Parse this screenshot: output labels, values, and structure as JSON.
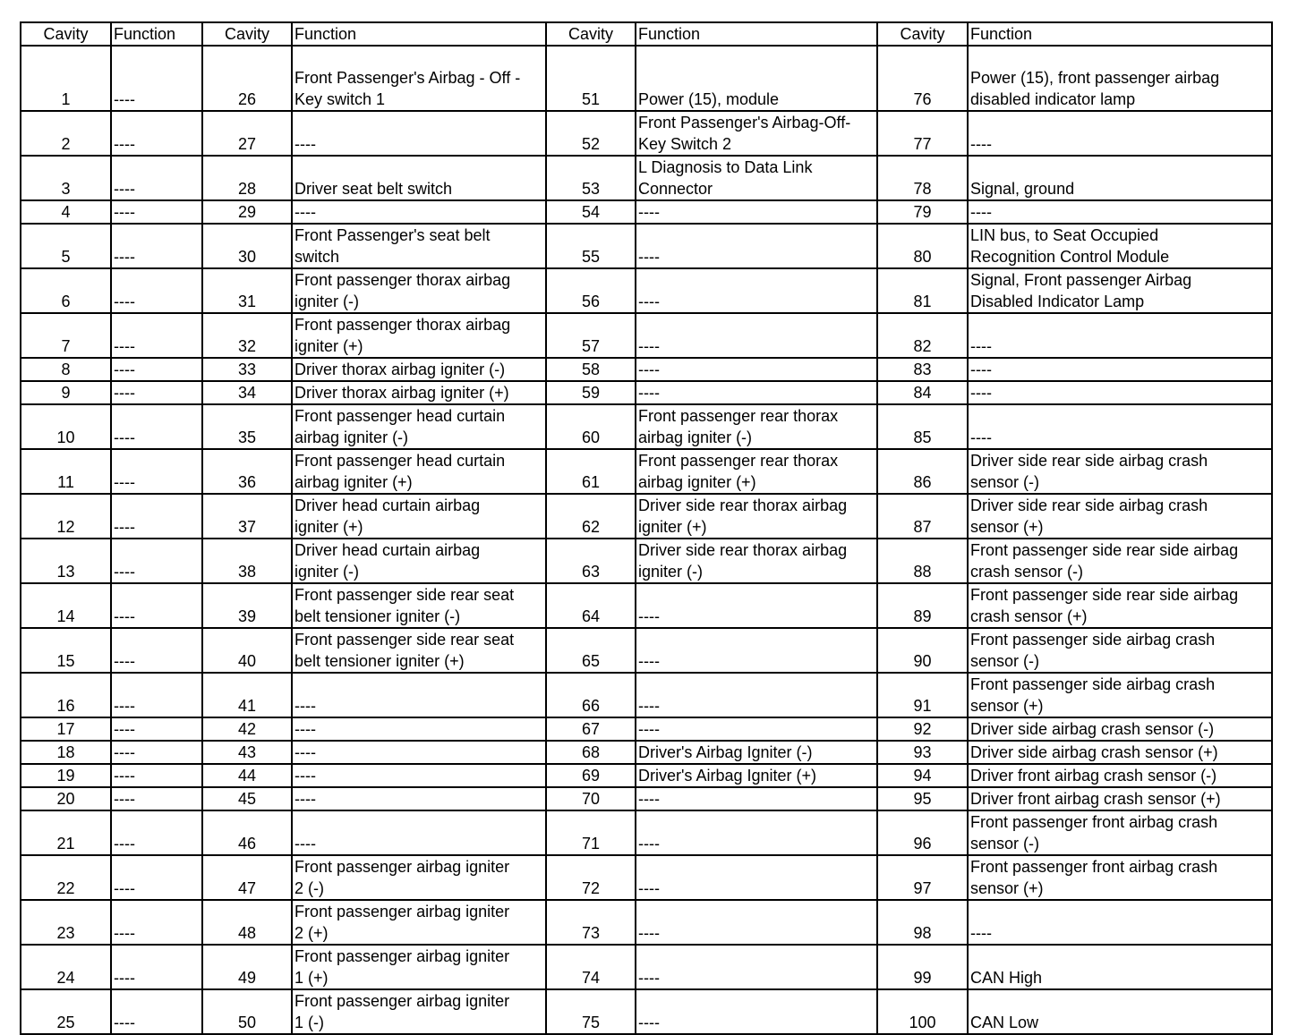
{
  "header": [
    "Cavity",
    "Function",
    "Cavity",
    "Function",
    "Cavity",
    "Function",
    "Cavity",
    "Function"
  ],
  "rows": [
    [
      "1",
      "----",
      "26",
      "Front Passenger's Airbag - Off -\n Key switch 1",
      "51",
      "Power (15), module",
      "76",
      "Power (15), front passenger airbag\ndisabled indicator lamp"
    ],
    [
      "2",
      "----",
      "27",
      "----",
      "52",
      "Front Passenger's Airbag-Off-\nKey Switch 2",
      "77",
      "----"
    ],
    [
      "3",
      "----",
      "28",
      "Driver seat belt switch",
      "53",
      "L Diagnosis to Data Link\nConnector",
      "78",
      "Signal, ground"
    ],
    [
      "4",
      "----",
      "29",
      "----",
      "54",
      "----",
      "79",
      "----"
    ],
    [
      "5",
      "----",
      "30",
      "Front Passenger's seat belt\nswitch",
      "55",
      "----",
      "80",
      "LIN bus, to Seat Occupied\nRecognition Control Module"
    ],
    [
      "6",
      "----",
      "31",
      "Front passenger thorax airbag\nigniter (-)",
      "56",
      "----",
      "81",
      "Signal, Front passenger Airbag\nDisabled Indicator Lamp"
    ],
    [
      "7",
      "----",
      "32",
      "Front passenger thorax airbag\nigniter (+)",
      "57",
      "----",
      "82",
      "----"
    ],
    [
      "8",
      "----",
      "33",
      "Driver thorax airbag igniter (-)",
      "58",
      "----",
      "83",
      "----"
    ],
    [
      "9",
      "----",
      "34",
      "Driver thorax airbag igniter (+)",
      "59",
      "----",
      "84",
      "----"
    ],
    [
      "10",
      "----",
      "35",
      "Front passenger head curtain\nairbag igniter (-)",
      "60",
      "Front passenger rear thorax\nairbag igniter (-)",
      "85",
      "----"
    ],
    [
      "11",
      "----",
      "36",
      "Front passenger head curtain\nairbag igniter (+)",
      "61",
      "Front passenger rear thorax\nairbag igniter (+)",
      "86",
      "Driver side rear side airbag crash\nsensor (-)"
    ],
    [
      "12",
      "----",
      "37",
      "Driver head curtain airbag\nigniter (+)",
      "62",
      "Driver side rear thorax airbag\nigniter (+)",
      "87",
      "Driver side rear side airbag crash\nsensor (+)"
    ],
    [
      "13",
      "----",
      "38",
      "Driver head curtain airbag\nigniter (-)",
      "63",
      "Driver side rear thorax airbag\nigniter (-)",
      "88",
      "Front passenger side rear side airbag\ncrash sensor (-)"
    ],
    [
      "14",
      "----",
      "39",
      "Front passenger side rear seat\nbelt tensioner igniter (-)",
      "64",
      "----",
      "89",
      "Front passenger side rear side airbag\ncrash sensor (+)"
    ],
    [
      "15",
      "----",
      "40",
      "Front passenger side rear seat\nbelt tensioner igniter (+)",
      "65",
      "----",
      "90",
      "Front passenger side airbag crash\nsensor (-)"
    ],
    [
      "16",
      "----",
      "41",
      "----",
      "66",
      "----",
      "91",
      "Front passenger side airbag crash\nsensor (+)"
    ],
    [
      "17",
      "----",
      "42",
      "----",
      "67",
      "----",
      "92",
      "Driver side airbag crash sensor (-)"
    ],
    [
      "18",
      "----",
      "43",
      "----",
      "68",
      "Driver's Airbag Igniter (-)",
      "93",
      "Driver side airbag crash sensor (+)"
    ],
    [
      "19",
      "----",
      "44",
      "----",
      "69",
      "Driver's Airbag Igniter (+)",
      "94",
      "Driver front airbag crash sensor (-)"
    ],
    [
      "20",
      "----",
      "45",
      "----",
      "70",
      "----",
      "95",
      "Driver front airbag crash sensor (+)"
    ],
    [
      "21",
      "----",
      "46",
      "----",
      "71",
      "----",
      "96",
      "Front passenger front airbag crash\nsensor (-)"
    ],
    [
      "22",
      "----",
      "47",
      "Front passenger airbag igniter\n2 (-)",
      "72",
      "----",
      "97",
      "Front passenger front airbag crash\nsensor (+)"
    ],
    [
      "23",
      "----",
      "48",
      "Front passenger airbag igniter\n2 (+)",
      "73",
      "----",
      "98",
      "----"
    ],
    [
      "24",
      "----",
      "49",
      "Front passenger airbag igniter\n1 (+)",
      "74",
      "----",
      "99",
      "CAN High"
    ],
    [
      "25",
      "----",
      "50",
      "Front passenger airbag igniter\n1 (-)",
      "75",
      "----",
      "100",
      "CAN Low"
    ]
  ]
}
